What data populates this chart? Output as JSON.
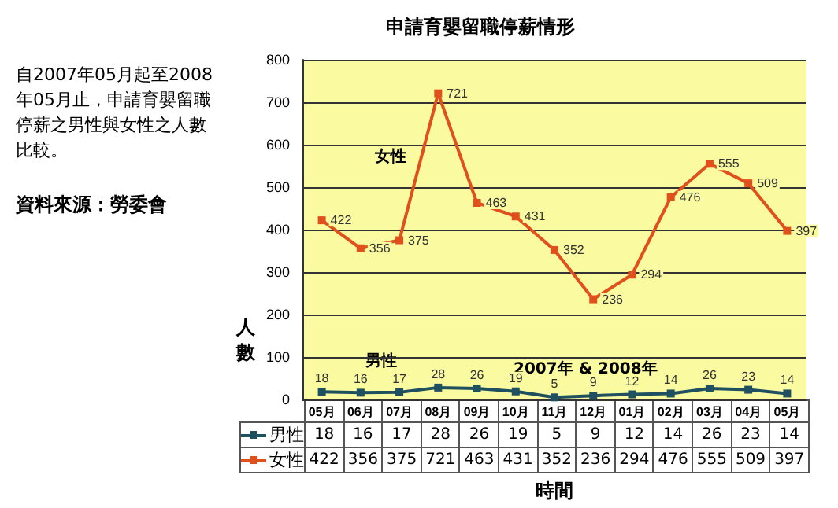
{
  "chart_data": {
    "type": "line",
    "title": "申請育嬰留職停薪情形",
    "xlabel": "時間",
    "ylabel": "人數",
    "categories": [
      "05月",
      "06月",
      "07月",
      "08月",
      "09月",
      "10月",
      "11月",
      "12月",
      "01月",
      "02月",
      "03月",
      "04月",
      "05月"
    ],
    "series": [
      {
        "name": "男性",
        "color": "#1e5060",
        "values": [
          18,
          16,
          17,
          28,
          26,
          19,
          5,
          9,
          12,
          14,
          26,
          23,
          14
        ],
        "value_labels": [
          "18",
          "16",
          "17",
          "28",
          "26",
          "19",
          "5",
          "9",
          "12",
          "14",
          "26",
          "23",
          "14"
        ]
      },
      {
        "name": "女性",
        "color": "#e0501c",
        "values": [
          422,
          356,
          375,
          721,
          463,
          431,
          352,
          236,
          294,
          476,
          555,
          509,
          397
        ],
        "value_labels": [
          "422",
          "356",
          "375",
          "721",
          "463",
          "431",
          "352",
          "236",
          "294",
          "476",
          "555",
          "509",
          "397"
        ]
      }
    ],
    "ylim": [
      0,
      800
    ],
    "yticks": [
      0,
      100,
      200,
      300,
      400,
      500,
      600,
      700,
      800
    ],
    "grid": "y",
    "marker": "square",
    "line_style": "solid",
    "legend": "bottom",
    "annotations": [
      "自2007年05月起至2008年05月止，申請育嬰留職停薪之男性與女性之人數比較。",
      "資料來源：勞委會",
      "女性",
      "男性",
      "2007年 & 2008年"
    ]
  }
}
